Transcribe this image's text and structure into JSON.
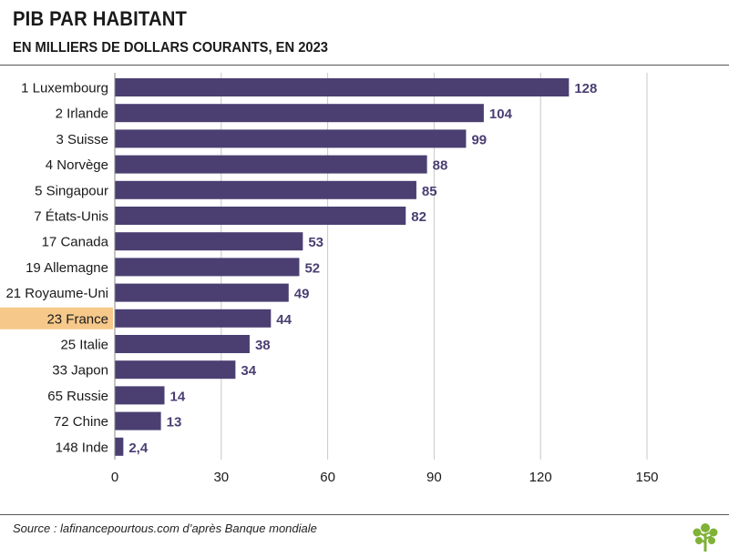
{
  "title": "PIB PAR HABITANT",
  "subtitle": "EN MILLIERS DE DOLLARS COURANTS, EN 2023",
  "source": "Source : lafinancepourtous.com d’après Banque mondiale",
  "colors": {
    "bar": "#4b3f72",
    "label_value": "#4b3f72",
    "highlight": "#f6c98b",
    "grid": "#c8c8c8",
    "text": "#1a1a1a",
    "logo": "#7fb237"
  },
  "logo_icon": "tree-icon",
  "chart_data": {
    "type": "bar",
    "orientation": "horizontal",
    "title": "PIB PAR HABITANT",
    "subtitle": "EN MILLIERS DE DOLLARS COURANTS, EN 2023",
    "xlabel": "",
    "ylabel": "",
    "xlim": [
      0,
      150
    ],
    "xticks": [
      0,
      30,
      60,
      90,
      120,
      150
    ],
    "grid": true,
    "highlight_category": "23 France",
    "categories": [
      "1 Luxembourg",
      "2 Irlande",
      "3 Suisse",
      "4 Norvège",
      "5 Singapour",
      "7 États-Unis",
      "17 Canada",
      "19 Allemagne",
      "21 Royaume-Uni",
      "23 France",
      "25 Italie",
      "33 Japon",
      "65 Russie",
      "72 Chine",
      "148 Inde"
    ],
    "values": [
      128,
      104,
      99,
      88,
      85,
      82,
      53,
      52,
      49,
      44,
      38,
      34,
      14,
      13,
      2.4
    ],
    "value_labels": [
      "128",
      "104",
      "99",
      "88",
      "85",
      "82",
      "53",
      "52",
      "49",
      "44",
      "38",
      "34",
      "14",
      "13",
      "2,4"
    ]
  }
}
